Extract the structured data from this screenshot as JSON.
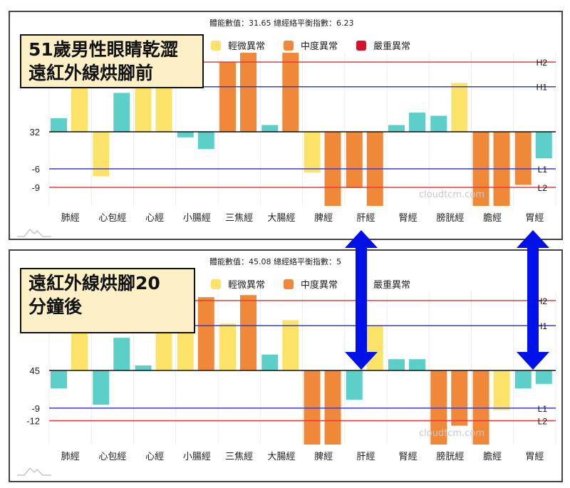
{
  "colors": {
    "normal": "#5ccfc8",
    "mild": "#fbe36a",
    "moderate": "#f0883a",
    "severe": "#d4122f",
    "upper": "#e83a3a",
    "lower": "#3a3ad8",
    "arrow": "#0010e8"
  },
  "legend": [
    {
      "label": "輕微異常",
      "color": "#fbe36a"
    },
    {
      "label": "中度異常",
      "color": "#f0883a"
    },
    {
      "label": "嚴重異常",
      "color": "#d4122f"
    }
  ],
  "watermark": "cloudtcm.com",
  "chart_data": [
    {
      "type": "bar",
      "panel_label": [
        "51歲男性眼睛乾澀",
        "遠紅外線烘腳前"
      ],
      "stats": "體能數值：31.65 總經絡平衡指數：6.23",
      "categories": [
        "肺經",
        "心包經",
        "心經",
        "小腸經",
        "三焦經",
        "大腸經",
        "脾經",
        "肝經",
        "腎經",
        "膀胱經",
        "膽經",
        "胃經"
      ],
      "baseline_label": "32",
      "ylim": [
        -12,
        12.8
      ],
      "y_ticks": [
        {
          "value": -6,
          "label": "-6"
        },
        {
          "value": -9,
          "label": "-9"
        }
      ],
      "ref_lines": [
        {
          "name": "H2",
          "value": 11.3,
          "kind": "upper"
        },
        {
          "name": "H1",
          "value": 7.3,
          "kind": "lower"
        },
        {
          "name": "L1",
          "value": -6,
          "kind": "lower"
        },
        {
          "name": "L2",
          "value": -9,
          "kind": "upper"
        }
      ],
      "bars": [
        [
          {
            "v": 2.2,
            "c": "normal"
          },
          {
            "v": 8,
            "c": "mild"
          }
        ],
        [
          {
            "v": -7.2,
            "c": "mild"
          },
          {
            "v": 6.3,
            "c": "normal"
          }
        ],
        [
          {
            "v": 8,
            "c": "mild"
          },
          {
            "v": 8,
            "c": "mild"
          }
        ],
        [
          {
            "v": -0.9,
            "c": "normal"
          },
          {
            "v": -2.8,
            "c": "normal"
          }
        ],
        [
          {
            "v": 11.3,
            "c": "moderate"
          },
          {
            "v": 12.8,
            "c": "moderate"
          }
        ],
        [
          {
            "v": 1.1,
            "c": "normal"
          },
          {
            "v": 12.8,
            "c": "moderate"
          }
        ],
        [
          {
            "v": -6.6,
            "c": "mild"
          },
          {
            "v": -12,
            "c": "moderate"
          }
        ],
        [
          {
            "v": -9.1,
            "c": "moderate"
          },
          {
            "v": -12,
            "c": "moderate"
          }
        ],
        [
          {
            "v": 1.1,
            "c": "normal"
          },
          {
            "v": 3.1,
            "c": "normal"
          }
        ],
        [
          {
            "v": 2.6,
            "c": "normal"
          },
          {
            "v": 7.9,
            "c": "mild"
          }
        ],
        [
          {
            "v": -12,
            "c": "moderate"
          },
          {
            "v": -12,
            "c": "moderate"
          }
        ],
        [
          {
            "v": -8.6,
            "c": "moderate"
          },
          {
            "v": -4.3,
            "c": "normal"
          }
        ]
      ]
    },
    {
      "type": "bar",
      "panel_label": [
        "遠紅外線烘腳20",
        "分鐘後"
      ],
      "stats": "體能數值：45.08 總經絡平衡指數：5",
      "categories": [
        "肺經",
        "心包經",
        "心經",
        "小腸經",
        "三焦經",
        "大腸經",
        "脾經",
        "肝經",
        "腎經",
        "膀胱經",
        "膽經",
        "胃經"
      ],
      "baseline_label": "45",
      "ylim": [
        -17.7,
        18.8
      ],
      "y_ticks": [
        {
          "value": -9,
          "label": "-9"
        },
        {
          "value": -12,
          "label": "-12"
        }
      ],
      "ref_lines": [
        {
          "name": "H2",
          "value": 16.7,
          "kind": "upper"
        },
        {
          "name": "H1",
          "value": 10.7,
          "kind": "lower"
        },
        {
          "name": "L1",
          "value": -9,
          "kind": "lower"
        },
        {
          "name": "L2",
          "value": -12,
          "kind": "upper"
        }
      ],
      "bars": [
        [
          {
            "v": -4.3,
            "c": "normal"
          },
          {
            "v": 9.8,
            "c": "mild"
          }
        ],
        [
          {
            "v": -8.2,
            "c": "normal"
          },
          {
            "v": 7.8,
            "c": "normal"
          }
        ],
        [
          {
            "v": 1.2,
            "c": "normal"
          },
          {
            "v": 9.8,
            "c": "mild"
          }
        ],
        [
          {
            "v": 9.8,
            "c": "mild"
          },
          {
            "v": 17.5,
            "c": "moderate"
          }
        ],
        [
          {
            "v": 11.2,
            "c": "mild"
          },
          {
            "v": 18,
            "c": "moderate"
          }
        ],
        [
          {
            "v": 3.8,
            "c": "normal"
          },
          {
            "v": 12,
            "c": "mild"
          }
        ],
        [
          {
            "v": -17.7,
            "c": "moderate"
          },
          {
            "v": -17.7,
            "c": "moderate"
          }
        ],
        [
          {
            "v": -7,
            "c": "normal"
          },
          {
            "v": 10.7,
            "c": "mild"
          }
        ],
        [
          {
            "v": 2.7,
            "c": "normal"
          },
          {
            "v": 2.7,
            "c": "normal"
          }
        ],
        [
          {
            "v": -17.7,
            "c": "moderate"
          },
          {
            "v": -13.2,
            "c": "moderate"
          }
        ],
        [
          {
            "v": -17.7,
            "c": "moderate"
          },
          {
            "v": -9.5,
            "c": "mild"
          }
        ],
        [
          {
            "v": -4.3,
            "c": "normal"
          },
          {
            "v": -3.2,
            "c": "normal"
          }
        ]
      ]
    }
  ]
}
